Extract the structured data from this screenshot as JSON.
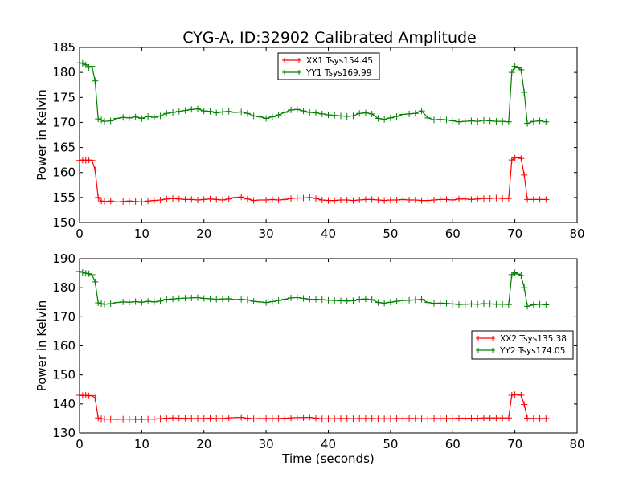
{
  "title": "CYG-A, ID:32902 Calibrated Amplitude",
  "colors": {
    "red_series": "#ff0000",
    "green_series": "#008000",
    "frame": "#000000",
    "background": "#ffffff"
  },
  "chart_data": [
    {
      "type": "line",
      "markers": "plus",
      "xlabel": "",
      "ylabel": "Power in Kelvin",
      "xlim": [
        0,
        80
      ],
      "ylim": [
        150,
        185
      ],
      "xticks": [
        0,
        10,
        20,
        30,
        40,
        50,
        60,
        70,
        80
      ],
      "yticks": [
        150,
        155,
        160,
        165,
        170,
        175,
        180,
        185
      ],
      "legend_position": "upper-center",
      "series": [
        {
          "name": "XX1 Tsys154.45",
          "color": "#ff0000",
          "x": [
            0,
            0.5,
            1,
            1.5,
            2,
            2.5,
            3,
            3.5,
            4,
            5,
            6,
            7,
            8,
            9,
            10,
            11,
            12,
            13,
            14,
            15,
            16,
            17,
            18,
            19,
            20,
            21,
            22,
            23,
            24,
            25,
            26,
            27,
            28,
            29,
            30,
            31,
            32,
            33,
            34,
            35,
            36,
            37,
            38,
            39,
            40,
            41,
            42,
            43,
            44,
            45,
            46,
            47,
            48,
            49,
            50,
            51,
            52,
            53,
            54,
            55,
            56,
            57,
            58,
            59,
            60,
            61,
            62,
            63,
            64,
            65,
            66,
            67,
            68,
            69,
            69.5,
            70,
            70.5,
            71,
            71.5,
            72,
            73,
            74,
            75
          ],
          "values": [
            162.4,
            162.5,
            162.4,
            162.5,
            162.4,
            160.5,
            155.0,
            154.3,
            154.2,
            154.3,
            154.1,
            154.2,
            154.3,
            154.2,
            154.1,
            154.3,
            154.4,
            154.5,
            154.7,
            154.8,
            154.7,
            154.6,
            154.6,
            154.5,
            154.6,
            154.7,
            154.6,
            154.5,
            154.7,
            155.0,
            155.1,
            154.7,
            154.4,
            154.5,
            154.5,
            154.6,
            154.5,
            154.6,
            154.8,
            154.9,
            154.9,
            155.0,
            154.8,
            154.5,
            154.4,
            154.4,
            154.5,
            154.5,
            154.4,
            154.5,
            154.6,
            154.6,
            154.5,
            154.4,
            154.5,
            154.5,
            154.6,
            154.5,
            154.5,
            154.4,
            154.4,
            154.5,
            154.6,
            154.6,
            154.5,
            154.7,
            154.7,
            154.6,
            154.7,
            154.8,
            154.8,
            154.9,
            154.8,
            154.8,
            162.5,
            162.9,
            163.0,
            162.8,
            159.5,
            154.6,
            154.6,
            154.6,
            154.6
          ]
        },
        {
          "name": "YY1 Tsys169.99",
          "color": "#008000",
          "x": [
            0,
            0.5,
            1,
            1.5,
            2,
            2.5,
            3,
            3.5,
            4,
            5,
            6,
            7,
            8,
            9,
            10,
            11,
            12,
            13,
            14,
            15,
            16,
            17,
            18,
            19,
            20,
            21,
            22,
            23,
            24,
            25,
            26,
            27,
            28,
            29,
            30,
            31,
            32,
            33,
            34,
            35,
            36,
            37,
            38,
            39,
            40,
            41,
            42,
            43,
            44,
            45,
            46,
            47,
            48,
            49,
            50,
            51,
            52,
            53,
            54,
            55,
            56,
            57,
            58,
            59,
            60,
            61,
            62,
            63,
            64,
            65,
            66,
            67,
            68,
            69,
            69.5,
            70,
            70.5,
            71,
            71.5,
            72,
            73,
            74,
            75
          ],
          "values": [
            181.9,
            181.8,
            181.5,
            181.0,
            181.2,
            178.3,
            170.7,
            170.5,
            170.2,
            170.3,
            170.8,
            171.0,
            170.9,
            171.1,
            170.8,
            171.2,
            171.0,
            171.3,
            171.8,
            172.0,
            172.2,
            172.4,
            172.6,
            172.7,
            172.3,
            172.2,
            171.9,
            172.1,
            172.2,
            172.0,
            172.1,
            171.8,
            171.3,
            171.1,
            170.8,
            171.1,
            171.5,
            172.0,
            172.5,
            172.6,
            172.3,
            172.0,
            171.9,
            171.7,
            171.5,
            171.4,
            171.3,
            171.2,
            171.3,
            171.8,
            171.9,
            171.7,
            170.8,
            170.6,
            170.9,
            171.2,
            171.6,
            171.7,
            171.8,
            172.3,
            170.9,
            170.5,
            170.6,
            170.5,
            170.3,
            170.1,
            170.2,
            170.3,
            170.2,
            170.4,
            170.3,
            170.2,
            170.2,
            170.1,
            180.0,
            181.2,
            180.9,
            180.5,
            176.0,
            169.8,
            170.2,
            170.3,
            170.1
          ]
        }
      ]
    },
    {
      "type": "line",
      "markers": "plus",
      "xlabel": "Time (seconds)",
      "ylabel": "Power in Kelvin",
      "xlim": [
        0,
        80
      ],
      "ylim": [
        130,
        190
      ],
      "xticks": [
        0,
        10,
        20,
        30,
        40,
        50,
        60,
        70,
        80
      ],
      "yticks": [
        130,
        140,
        150,
        160,
        170,
        180,
        190
      ],
      "legend_position": "center-right",
      "series": [
        {
          "name": "XX2 Tsys135.38",
          "color": "#ff0000",
          "x": [
            0,
            0.5,
            1,
            1.5,
            2,
            2.5,
            3,
            3.5,
            4,
            5,
            6,
            7,
            8,
            9,
            10,
            11,
            12,
            13,
            14,
            15,
            16,
            17,
            18,
            19,
            20,
            21,
            22,
            23,
            24,
            25,
            26,
            27,
            28,
            29,
            30,
            31,
            32,
            33,
            34,
            35,
            36,
            37,
            38,
            39,
            40,
            41,
            42,
            43,
            44,
            45,
            46,
            47,
            48,
            49,
            50,
            51,
            52,
            53,
            54,
            55,
            56,
            57,
            58,
            59,
            60,
            61,
            62,
            63,
            64,
            65,
            66,
            67,
            68,
            69,
            69.5,
            70,
            70.5,
            71,
            71.5,
            72,
            73,
            74,
            75
          ],
          "values": [
            143.0,
            142.9,
            143.0,
            142.8,
            142.9,
            142.0,
            135.2,
            134.9,
            134.8,
            134.8,
            134.7,
            134.8,
            134.8,
            134.7,
            134.7,
            134.8,
            134.8,
            134.9,
            135.1,
            135.2,
            135.1,
            135.1,
            135.0,
            135.0,
            135.0,
            135.1,
            135.0,
            135.0,
            135.2,
            135.3,
            135.4,
            135.1,
            134.9,
            135.0,
            135.0,
            135.0,
            135.0,
            135.1,
            135.2,
            135.3,
            135.3,
            135.4,
            135.1,
            134.9,
            134.9,
            134.9,
            135.0,
            135.0,
            134.9,
            135.0,
            135.0,
            135.0,
            134.9,
            134.9,
            134.9,
            135.0,
            135.0,
            135.0,
            135.0,
            134.9,
            134.9,
            135.0,
            135.0,
            135.0,
            135.0,
            135.1,
            135.1,
            135.1,
            135.1,
            135.2,
            135.2,
            135.2,
            135.2,
            135.2,
            143.0,
            143.2,
            143.1,
            143.0,
            139.8,
            135.1,
            135.0,
            135.0,
            135.0
          ]
        },
        {
          "name": "YY2 Tsys174.05",
          "color": "#008000",
          "x": [
            0,
            0.5,
            1,
            1.5,
            2,
            2.5,
            3,
            3.5,
            4,
            5,
            6,
            7,
            8,
            9,
            10,
            11,
            12,
            13,
            14,
            15,
            16,
            17,
            18,
            19,
            20,
            21,
            22,
            23,
            24,
            25,
            26,
            27,
            28,
            29,
            30,
            31,
            32,
            33,
            34,
            35,
            36,
            37,
            38,
            39,
            40,
            41,
            42,
            43,
            44,
            45,
            46,
            47,
            48,
            49,
            50,
            51,
            52,
            53,
            54,
            55,
            56,
            57,
            58,
            59,
            60,
            61,
            62,
            63,
            64,
            65,
            66,
            67,
            68,
            69,
            69.5,
            70,
            70.5,
            71,
            71.5,
            72,
            73,
            74,
            75
          ],
          "values": [
            185.6,
            185.3,
            185.0,
            184.8,
            184.5,
            182.0,
            174.8,
            174.5,
            174.3,
            174.5,
            174.9,
            175.1,
            175.0,
            175.2,
            175.0,
            175.3,
            175.1,
            175.4,
            176.0,
            176.1,
            176.3,
            176.4,
            176.5,
            176.6,
            176.3,
            176.2,
            176.0,
            176.1,
            176.2,
            175.9,
            176.0,
            175.8,
            175.3,
            175.1,
            174.9,
            175.2,
            175.6,
            176.0,
            176.5,
            176.6,
            176.3,
            176.0,
            176.0,
            175.9,
            175.7,
            175.6,
            175.5,
            175.4,
            175.5,
            176.0,
            176.1,
            175.9,
            174.9,
            174.7,
            175.0,
            175.3,
            175.6,
            175.7,
            175.8,
            176.0,
            174.9,
            174.6,
            174.7,
            174.6,
            174.4,
            174.2,
            174.3,
            174.4,
            174.3,
            174.5,
            174.4,
            174.3,
            174.3,
            174.2,
            184.5,
            185.2,
            184.7,
            184.2,
            180.0,
            173.6,
            174.1,
            174.3,
            174.1
          ]
        }
      ]
    }
  ]
}
